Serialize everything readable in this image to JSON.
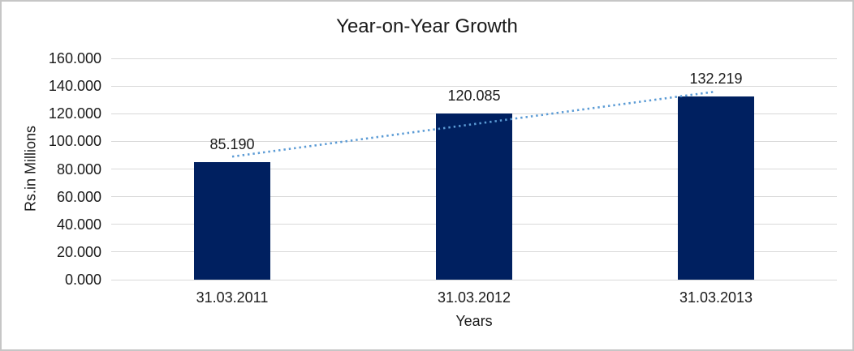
{
  "chart_data": {
    "type": "bar",
    "title": "Year-on-Year Growth",
    "xlabel": "Years",
    "ylabel": "Rs.in Millions",
    "categories": [
      "31.03.2011",
      "31.03.2012",
      "31.03.2013"
    ],
    "values": [
      85.19,
      120.085,
      132.219
    ],
    "data_labels": [
      "85.190",
      "120.085",
      "132.219"
    ],
    "ylim": [
      0,
      160
    ],
    "ytick_step": 20,
    "ytick_labels": [
      "0.000",
      "20.000",
      "40.000",
      "60.000",
      "80.000",
      "100.000",
      "120.000",
      "140.000",
      "160.000"
    ],
    "grid": true,
    "legend": "none",
    "bar_color": "#002060",
    "gridline_color": "#d9d9d9",
    "text_color": "#1a1a1a",
    "trendline": {
      "type": "linear",
      "style": "dotted",
      "color": "#5b9bd5",
      "values_at_ends": [
        88.98,
        136.02
      ]
    }
  }
}
